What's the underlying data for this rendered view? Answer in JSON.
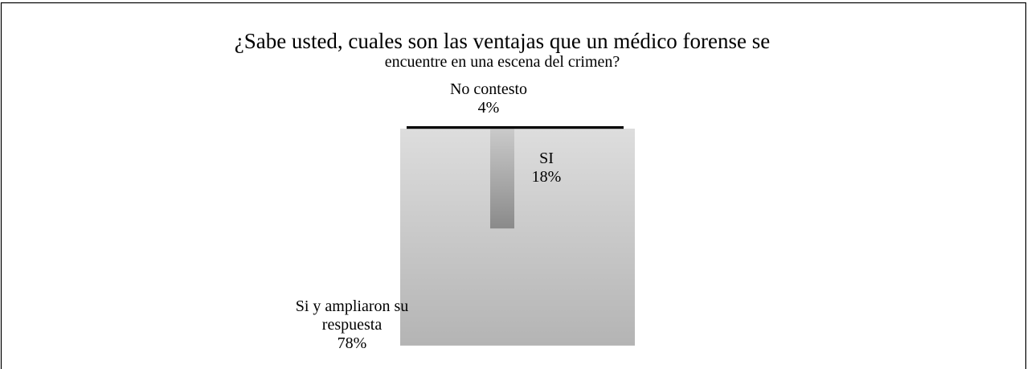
{
  "chart_data": {
    "type": "pie",
    "title": "¿Sabe usted, cuales son las ventajas que un médico forense se",
    "subtitle": "encuentre en una escena del crimen?",
    "categories": [
      "No contesto",
      "SI",
      "Si y ampliaron su respuesta"
    ],
    "values": [
      4,
      18,
      78
    ],
    "value_labels": [
      "4%",
      "18%",
      "78%"
    ],
    "colors": [
      "#000000",
      "#8a8a8a",
      "#b4b4b4"
    ]
  }
}
